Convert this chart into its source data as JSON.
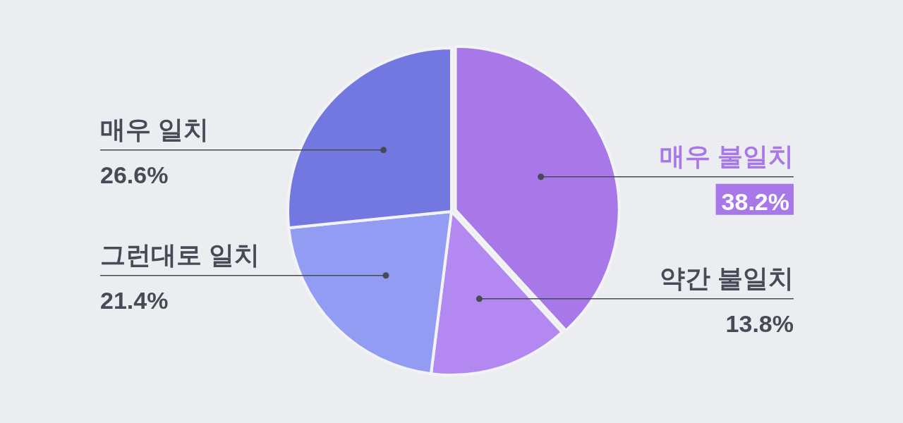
{
  "chart_data": {
    "type": "pie",
    "categories": [
      "매우 불일치",
      "약간 불일치",
      "그런대로 일치",
      "매우 일치"
    ],
    "values": [
      38.2,
      13.8,
      21.4,
      26.6
    ],
    "colors": [
      "#a878e8",
      "#b388f0",
      "#929cf2",
      "#7378e0"
    ],
    "value_labels": [
      "38.2%",
      "13.8%",
      "21.4%",
      "26.6%"
    ],
    "legend": false
  }
}
